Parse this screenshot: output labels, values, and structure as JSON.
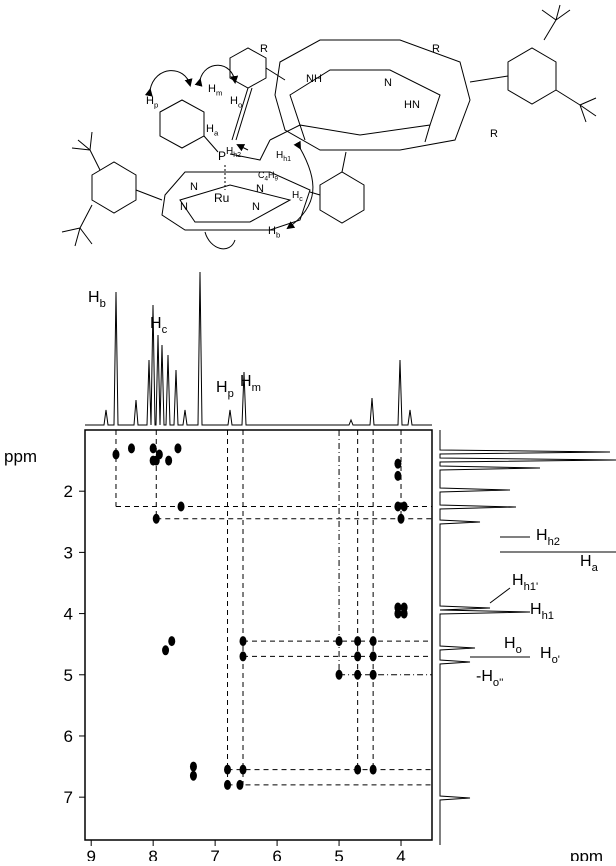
{
  "chart_data": {
    "type": "nmr2d",
    "x_label": "ppm",
    "y_label": "ppm",
    "xlim": [
      9.1,
      3.5
    ],
    "xticks": [
      9,
      8,
      7,
      6,
      5,
      4
    ],
    "ylim": [
      1,
      7.7
    ],
    "yticks": [
      2,
      3,
      4,
      5,
      6,
      7
    ],
    "color": "#000000",
    "peaks": {
      "x": [
        8.35,
        8.0,
        7.9,
        7.75,
        7.6,
        8.0,
        7.95,
        8.6,
        7.55,
        4.05,
        3.95,
        7.95,
        4.0,
        4.05,
        4.05,
        4.05,
        3.95,
        4.05,
        3.95,
        7.7,
        7.8,
        6.55,
        5.0,
        4.7,
        4.45,
        6.55,
        4.7,
        4.45,
        5.0,
        4.7,
        4.45,
        7.35,
        7.35,
        6.8,
        6.55,
        4.7,
        4.45,
        6.8,
        6.6
      ],
      "y": [
        1.3,
        1.3,
        1.4,
        1.5,
        1.3,
        1.5,
        1.5,
        1.4,
        2.25,
        2.25,
        2.25,
        2.45,
        2.45,
        1.55,
        1.75,
        3.9,
        3.9,
        4.0,
        4.0,
        4.45,
        4.6,
        4.45,
        4.45,
        4.45,
        4.45,
        4.7,
        4.7,
        4.7,
        5.0,
        5.0,
        5.0,
        6.5,
        6.65,
        6.55,
        6.55,
        6.55,
        6.55,
        6.8,
        6.8
      ]
    },
    "v_guides": [
      {
        "x": 8.6,
        "y": [
          1,
          2.25
        ],
        "style": "dashed"
      },
      {
        "x": 7.95,
        "y": [
          1,
          2.45
        ],
        "style": "dashed"
      },
      {
        "x": 6.8,
        "y": [
          1,
          6.8
        ],
        "style": "dashed"
      },
      {
        "x": 6.55,
        "y": [
          1,
          6.8
        ],
        "style": "dashed"
      },
      {
        "x": 5.0,
        "y": [
          1,
          5.0
        ],
        "style": "dashdot"
      },
      {
        "x": 4.7,
        "y": [
          1,
          6.55
        ],
        "style": "dashed"
      },
      {
        "x": 4.45,
        "y": [
          1,
          6.55
        ],
        "style": "dashed"
      },
      {
        "x": 4.0,
        "y": [
          1,
          2.45
        ],
        "style": "dashed"
      }
    ],
    "h_guides": [
      {
        "y": 2.25,
        "x": [
          8.6,
          3.5
        ],
        "style": "dashed"
      },
      {
        "y": 2.45,
        "x": [
          7.95,
          3.5
        ],
        "style": "dashed"
      },
      {
        "y": 4.45,
        "x": [
          6.55,
          3.5
        ],
        "style": "dashed"
      },
      {
        "y": 4.7,
        "x": [
          6.55,
          3.5
        ],
        "style": "dashed"
      },
      {
        "y": 5.0,
        "x": [
          5.0,
          3.5
        ],
        "style": "dashdot"
      },
      {
        "y": 6.55,
        "x": [
          6.8,
          3.5
        ],
        "style": "dashed"
      },
      {
        "y": 6.8,
        "x": [
          6.8,
          3.5
        ],
        "style": "dashed"
      }
    ],
    "top_labels": [
      {
        "parts": [
          "H",
          "b"
        ]
      },
      {
        "parts": [
          "H",
          "c"
        ]
      },
      {
        "parts": [
          "H",
          "p"
        ]
      },
      {
        "parts": [
          "H",
          "m"
        ]
      }
    ],
    "right_labels": [
      {
        "parts": [
          "H",
          "h2"
        ]
      },
      {
        "parts": [
          "H",
          "a"
        ]
      },
      {
        "parts": [
          "H",
          "h1'"
        ]
      },
      {
        "parts": [
          "H",
          "h1"
        ]
      },
      {
        "parts": [
          "H",
          "o"
        ]
      },
      {
        "parts": [
          "H",
          "o'"
        ]
      },
      {
        "parts": [
          "-H",
          "o''"
        ]
      }
    ]
  },
  "molecule_labels": [
    {
      "parts": [
        "R"
      ]
    },
    {
      "parts": [
        "R"
      ]
    },
    {
      "parts": [
        "R"
      ]
    },
    {
      "parts": [
        "NH"
      ]
    },
    {
      "parts": [
        "N"
      ]
    },
    {
      "parts": [
        "HN"
      ]
    },
    {
      "parts": [
        "H",
        "m"
      ]
    },
    {
      "parts": [
        "H",
        "p"
      ]
    },
    {
      "parts": [
        "H",
        "o"
      ]
    },
    {
      "parts": [
        "H",
        "a"
      ]
    },
    {
      "parts": [
        "H",
        "h2"
      ]
    },
    {
      "parts": [
        "H",
        "h1"
      ]
    },
    {
      "parts": [
        "C",
        "4",
        "H",
        "9"
      ]
    },
    {
      "parts": [
        "H",
        "c"
      ]
    },
    {
      "parts": [
        "P"
      ]
    },
    {
      "parts": [
        "N"
      ]
    },
    {
      "parts": [
        "N"
      ]
    },
    {
      "parts": [
        "Ru"
      ]
    },
    {
      "parts": [
        "N"
      ]
    },
    {
      "parts": [
        "N"
      ]
    },
    {
      "parts": [
        "H",
        "b"
      ]
    }
  ]
}
